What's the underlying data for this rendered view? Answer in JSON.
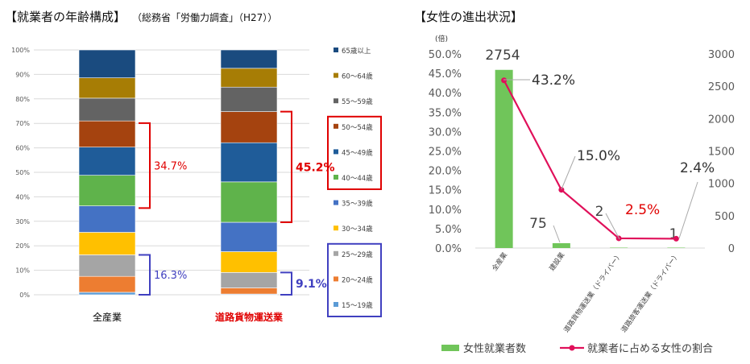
{
  "left_title": "【就業者の年齢構成】",
  "left_subtitle": "（総務省「労働力調査」（H27））",
  "right_title": "【女性の進出状況】",
  "chart_data": [
    {
      "type": "bar",
      "stacked": true,
      "categories": [
        "全産業",
        "道路貨物運送業"
      ],
      "category_colors": [
        "#000000",
        "#e00000"
      ],
      "y_ticks": [
        "0%",
        "10%",
        "20%",
        "30%",
        "40%",
        "50%",
        "60%",
        "70%",
        "80%",
        "90%",
        "100%"
      ],
      "ylim": [
        0,
        100
      ],
      "grid": true,
      "legend_position": "right",
      "series": [
        {
          "name": "15～19歳",
          "color": "#5b9bd5",
          "values": [
            1.0,
            0.3
          ]
        },
        {
          "name": "20～24歳",
          "color": "#ed7d31",
          "values": [
            6.5,
            2.5
          ]
        },
        {
          "name": "25～29歳",
          "color": "#a5a5a5",
          "values": [
            8.8,
            6.3
          ]
        },
        {
          "name": "30～34歳",
          "color": "#ffc000",
          "values": [
            9.2,
            8.5
          ]
        },
        {
          "name": "35～39歳",
          "color": "#4472c4",
          "values": [
            10.8,
            12.0
          ]
        },
        {
          "name": "40～44歳",
          "color": "#5fb34b",
          "values": [
            12.5,
            16.5
          ]
        },
        {
          "name": "45～49歳",
          "color": "#1f5c99",
          "values": [
            11.5,
            16.0
          ]
        },
        {
          "name": "50～54歳",
          "color": "#a5430f",
          "values": [
            10.7,
            12.7
          ]
        },
        {
          "name": "55～59歳",
          "color": "#636363",
          "values": [
            9.3,
            10.0
          ]
        },
        {
          "name": "60～64歳",
          "color": "#a77d05",
          "values": [
            8.3,
            7.7
          ]
        },
        {
          "name": "65歳以上",
          "color": "#1a4b7f",
          "values": [
            11.4,
            7.5
          ]
        }
      ],
      "annotations": [
        {
          "text": "34.7%",
          "bar": 0,
          "range": [
            35.4,
            70.1
          ],
          "color": "#e00000"
        },
        {
          "text": "16.3%",
          "bar": 0,
          "range": [
            0,
            16.3
          ],
          "color": "#4040c0"
        },
        {
          "text": "45.2%",
          "bar": 1,
          "range": [
            29.6,
            74.8
          ],
          "color": "#e00000"
        },
        {
          "text": "9.1%",
          "bar": 1,
          "range": [
            0,
            9.1
          ],
          "color": "#4040c0"
        }
      ],
      "legend_boxes": [
        {
          "items": [
            "50～54歳",
            "45～49歳",
            "40～44歳"
          ],
          "color": "#e00000"
        },
        {
          "items": [
            "25～29歳",
            "20～24歳",
            "15～19歳"
          ],
          "color": "#4040c0"
        }
      ]
    },
    {
      "type": "bar+line",
      "categories": [
        "全産業",
        "建設業",
        "道路貨物運送業（ドライバー）",
        "道路旅客運送業（ドライバー）"
      ],
      "bar_series": {
        "name": "女性就業者数",
        "color": "#70c55a",
        "values": [
          2754,
          75,
          2,
          1
        ]
      },
      "line_series": {
        "name": "就業者に占める女性の割合",
        "color": "#e0105a",
        "values": [
          43.2,
          15.0,
          2.5,
          2.4
        ]
      },
      "bar_labels": [
        "2754",
        "75",
        "2",
        "1"
      ],
      "line_labels": [
        "43.2%",
        "15.0%",
        "2.5%",
        "2.4%"
      ],
      "line_label_colors": [
        "#333333",
        "#333333",
        "#e00000",
        "#333333"
      ],
      "left_axis_ticks": [
        "0.0%",
        "5.0%",
        "10.0%",
        "15.0%",
        "20.0%",
        "25.0%",
        "30.0%",
        "35.0%",
        "40.0%",
        "45.0%",
        "50.0%"
      ],
      "left_ylim": [
        0,
        50
      ],
      "right_axis_ticks": [
        "0",
        "500",
        "1000",
        "1500",
        "2000",
        "2500",
        "3000"
      ],
      "right_ylim": [
        0,
        3000
      ],
      "right_axis_unit": "(倍)",
      "legend_position": "bottom"
    }
  ]
}
